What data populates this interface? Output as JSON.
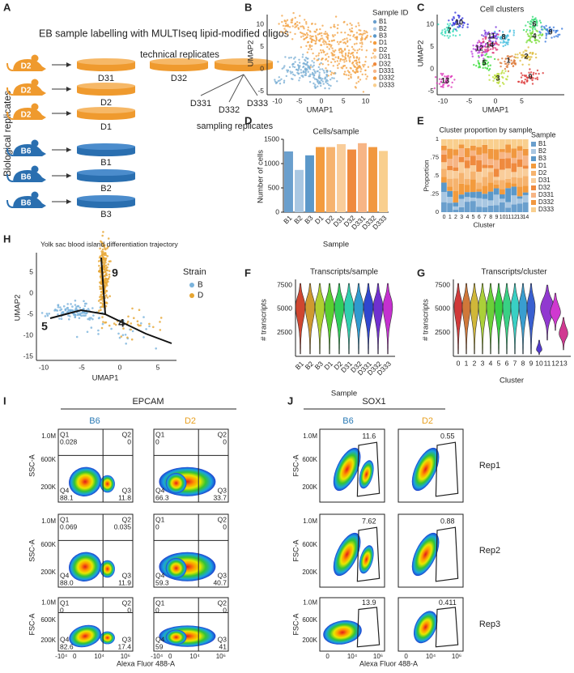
{
  "panel_labels": [
    "A",
    "B",
    "C",
    "D",
    "E",
    "F",
    "G",
    "H",
    "I",
    "J"
  ],
  "panel_a": {
    "title": "EB sample labelling with MULTIseq lipid-modified oligos",
    "technical_replicates": "technical replicates",
    "sampling_replicates": "sampling replicates",
    "biological_replicates": "Biological replicates",
    "mice": [
      "D2",
      "D2",
      "D2",
      "B6",
      "B6",
      "B6"
    ],
    "dishes": [
      "D31",
      "D32",
      "D2",
      "D1",
      "B1",
      "B2",
      "B3"
    ],
    "sampling": [
      "D331",
      "D332",
      "D333"
    ]
  },
  "panel_b": {
    "legend_title": "Sample ID",
    "xlabel": "UMAP1",
    "ylabel": "UMAP2",
    "xticks": [
      -10,
      -5,
      0,
      5,
      10
    ],
    "yticks": [
      10,
      5,
      0,
      -5
    ]
  },
  "panel_c": {
    "title": "Cell clusters",
    "clusters": [
      0,
      1,
      2,
      3,
      4,
      5,
      6,
      7,
      8,
      9,
      10,
      11,
      12,
      13,
      14
    ],
    "xlabel": "UMAP1",
    "ylabel": "UMAP2",
    "xticks": [
      -10,
      -5,
      0,
      5
    ],
    "yticks": [
      10,
      5,
      0,
      -5
    ]
  },
  "chart_data": {
    "type": "bar",
    "title": "Cells/sample",
    "xlabel": "Sample",
    "ylabel": "Number of cells",
    "categories": [
      "B1",
      "B2",
      "B3",
      "D1",
      "D2",
      "D31",
      "D32",
      "D331",
      "D332",
      "D333"
    ],
    "values": [
      1250,
      870,
      1170,
      1340,
      1340,
      1400,
      1290,
      1420,
      1340,
      1260
    ],
    "colors": [
      "#6a9fcd",
      "#a9c7e2",
      "#5b98c9",
      "#f39b3d",
      "#f6b36e",
      "#f9cd9a",
      "#ef8a3e",
      "#f7b585",
      "#f1983f",
      "#f9cf8e"
    ],
    "ylim": [
      0,
      1500
    ],
    "yticks": [
      0,
      500,
      1000,
      1500
    ]
  },
  "panel_e": {
    "title": "Cluster proportion by sample",
    "ylabel": "Proportion",
    "xlabel": "Cluster",
    "legend_title": "Sample",
    "yticks": [
      "0",
      ".25",
      ".5",
      ".75",
      "1"
    ]
  },
  "panel_f": {
    "title": "Transcripts/sample",
    "ylabel": "# transcripts",
    "xlabel": "Sample",
    "yticks": [
      2500,
      5000,
      7500
    ]
  },
  "panel_g": {
    "title": "Transcripts/cluster",
    "ylabel": "# transcripts",
    "xlabel": "Cluster",
    "yticks": [
      2500,
      5000,
      7500
    ],
    "categories": [
      0,
      1,
      2,
      3,
      4,
      5,
      6,
      7,
      8,
      9,
      10,
      11,
      12,
      13
    ]
  },
  "panel_h": {
    "title": "Yolk sac blood island differentiation trajectory",
    "legend_title": "Strain",
    "legend": [
      {
        "name": "B",
        "color": "#7bb3dc"
      },
      {
        "name": "D",
        "color": "#e6a532"
      }
    ],
    "node_labels": [
      "9",
      "5",
      "4"
    ],
    "xlabel": "UMAP1",
    "ylabel": "UMAP2",
    "xticks": [
      -10,
      -5,
      0,
      5
    ],
    "yticks": [
      5,
      0,
      -5,
      -10,
      -15
    ]
  },
  "panel_i": {
    "title": "EPCAM",
    "columns": [
      "B6",
      "D2"
    ],
    "quadrants": [
      "Q1",
      "Q2",
      "Q3",
      "Q4"
    ],
    "ylabels": [
      "SSC-A",
      "SSC-A",
      "FSC-A"
    ],
    "yticks": [
      "1.0M",
      "600K",
      "200K"
    ],
    "xticks": [
      "-10⁴",
      "0",
      "10⁴",
      "10⁶"
    ],
    "xlabel": "Alexa Fluor 488-A",
    "plots": [
      [
        [
          0.028,
          0,
          11.8,
          88.1
        ],
        [
          0,
          0,
          33.7,
          66.3
        ]
      ],
      [
        [
          0.069,
          0.035,
          11.9,
          "88.0"
        ],
        [
          0,
          0,
          40.7,
          59.3
        ]
      ],
      [
        [
          0,
          0,
          17.4,
          82.6
        ],
        [
          0,
          0,
          41,
          59
        ]
      ]
    ]
  },
  "panel_j": {
    "title": "SOX1",
    "columns": [
      "B6",
      "D2"
    ],
    "rows": [
      "Rep1",
      "Rep2",
      "Rep3"
    ],
    "ylabel": "FSC-A",
    "yticks": [
      "1.0M",
      "600K",
      "200K"
    ],
    "xticks": [
      "0",
      "10⁴",
      "10⁶"
    ],
    "xlabel": "Alexa Fluor 488-A",
    "gates": [
      [
        11.6,
        0.55
      ],
      [
        7.62,
        0.88
      ],
      [
        13.9,
        0.411
      ]
    ]
  }
}
